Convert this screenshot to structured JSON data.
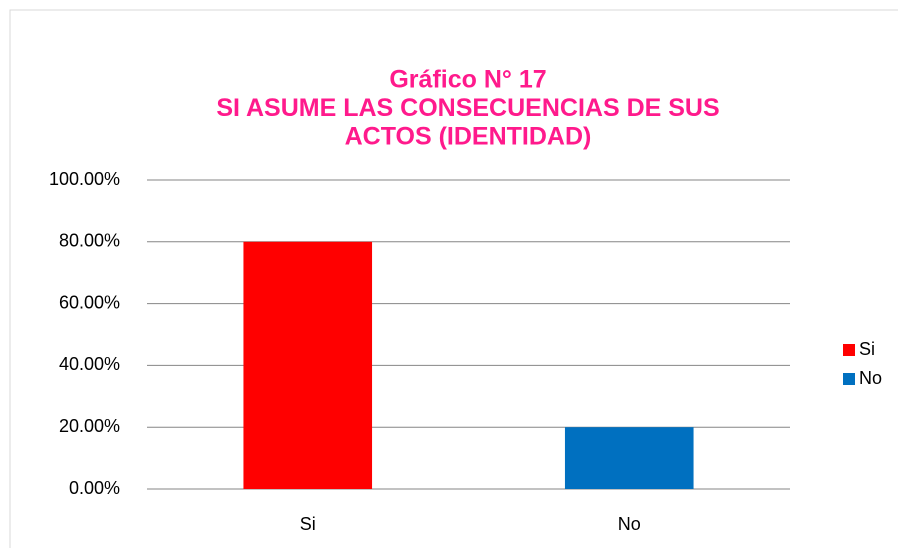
{
  "chart_data": {
    "type": "bar",
    "title": [
      "Gráfico  N° 17",
      "SI  ASUME LAS CONSECUENCIAS DE SUS",
      "ACTOS (IDENTIDAD)"
    ],
    "title_color": "#ff1a8c",
    "categories": [
      "Si",
      "No"
    ],
    "values": [
      80,
      20
    ],
    "colors": [
      "#ff0000",
      "#0070c0"
    ],
    "ylim": [
      0,
      100
    ],
    "yticks": [
      {
        "value": 0,
        "label": "0.00%"
      },
      {
        "value": 20,
        "label": "20.00%"
      },
      {
        "value": 40,
        "label": "40.00%"
      },
      {
        "value": 60,
        "label": "60.00%"
      },
      {
        "value": 80,
        "label": "80.00%"
      },
      {
        "value": 100,
        "label": "100.00%"
      }
    ],
    "grid": true,
    "legend": "right"
  }
}
